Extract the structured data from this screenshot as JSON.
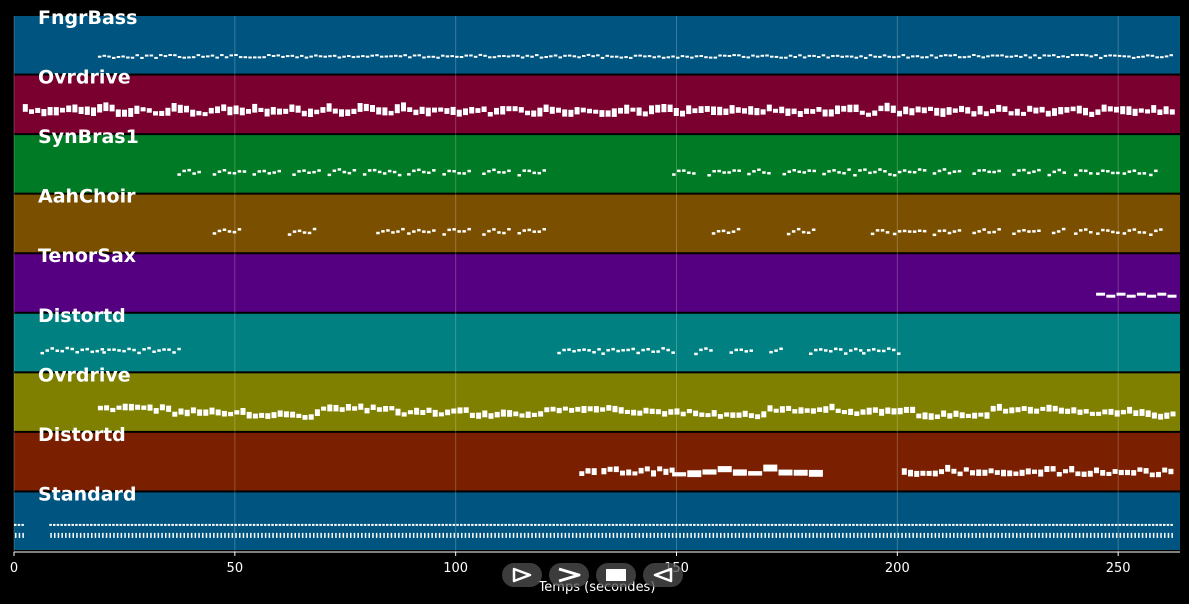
{
  "chart_data": {
    "type": "piano-roll",
    "xlabel": "Temps (secondes)",
    "xlim": [
      0,
      264
    ],
    "xticks": [
      0,
      50,
      100,
      150,
      200,
      250
    ],
    "grid": true,
    "tracks": [
      {
        "name": "FngrBass",
        "color": "#005580",
        "segments": [
          [
            19,
            262
          ]
        ],
        "style": "dense-low",
        "pattern": "bass"
      },
      {
        "name": "Ovrdrive",
        "color": "#7a0030",
        "segments": [
          [
            2,
            262
          ]
        ],
        "style": "thick",
        "pattern": "riff"
      },
      {
        "name": "SynBras1",
        "color": "#007a25",
        "segments": [
          [
            37,
            42
          ],
          [
            45,
            52
          ],
          [
            54,
            60
          ],
          [
            63,
            69
          ],
          [
            71,
            77
          ],
          [
            79,
            88
          ],
          [
            89,
            95
          ],
          [
            97,
            103
          ],
          [
            106,
            112
          ],
          [
            114,
            120
          ],
          [
            149,
            154
          ],
          [
            157,
            164
          ],
          [
            166,
            171
          ],
          [
            174,
            181
          ],
          [
            183,
            189
          ],
          [
            190,
            198
          ],
          [
            199,
            206
          ],
          [
            208,
            214
          ],
          [
            217,
            223
          ],
          [
            226,
            232
          ],
          [
            234,
            238
          ],
          [
            240,
            244
          ],
          [
            245,
            250
          ],
          [
            251,
            256
          ],
          [
            257,
            259
          ]
        ],
        "style": "phrase"
      },
      {
        "name": "AahChoir",
        "color": "#7a5000",
        "segments": [
          [
            45,
            51
          ],
          [
            62,
            68
          ],
          [
            82,
            88
          ],
          [
            89,
            95
          ],
          [
            97,
            103
          ],
          [
            106,
            112
          ],
          [
            114,
            120
          ],
          [
            158,
            164
          ],
          [
            175,
            181
          ],
          [
            194,
            198
          ],
          [
            199,
            206
          ],
          [
            208,
            214
          ],
          [
            217,
            223
          ],
          [
            226,
            232
          ],
          [
            235,
            238
          ],
          [
            240,
            244
          ],
          [
            245,
            250
          ],
          [
            251,
            256
          ],
          [
            257,
            260
          ]
        ],
        "style": "phrase"
      },
      {
        "name": "TenorSax",
        "color": "#550080",
        "segments": [
          [
            245,
            262
          ]
        ],
        "style": "sparse"
      },
      {
        "name": "Distortd",
        "color": "#008080",
        "segments": [
          [
            6,
            20
          ],
          [
            20,
            37
          ],
          [
            123,
            133
          ],
          [
            133,
            149
          ],
          [
            154,
            158
          ],
          [
            162,
            167
          ],
          [
            171,
            174
          ],
          [
            180,
            192
          ],
          [
            192,
            201
          ]
        ],
        "style": "phrase"
      },
      {
        "name": "Ovrdrive",
        "color": "#808000",
        "segments": [
          [
            19,
            262
          ]
        ],
        "style": "thick",
        "pattern": "steps"
      },
      {
        "name": "Distortd",
        "color": "#7a2000",
        "segments": [
          [
            128,
            132
          ],
          [
            133,
            149
          ],
          [
            149,
            183
          ],
          [
            201,
            262
          ]
        ],
        "style": "thick",
        "pattern": "lead"
      },
      {
        "name": "Standard",
        "color": "#005580",
        "segments": [
          [
            0,
            2
          ],
          [
            8,
            262
          ]
        ],
        "style": "drums"
      }
    ]
  },
  "controls": [
    {
      "name": "play-button",
      "icon": "play-icon"
    },
    {
      "name": "forward-button",
      "icon": "chevron-right-icon"
    },
    {
      "name": "stop-button",
      "icon": "stop-icon"
    },
    {
      "name": "back-button",
      "icon": "rewind-icon"
    }
  ]
}
